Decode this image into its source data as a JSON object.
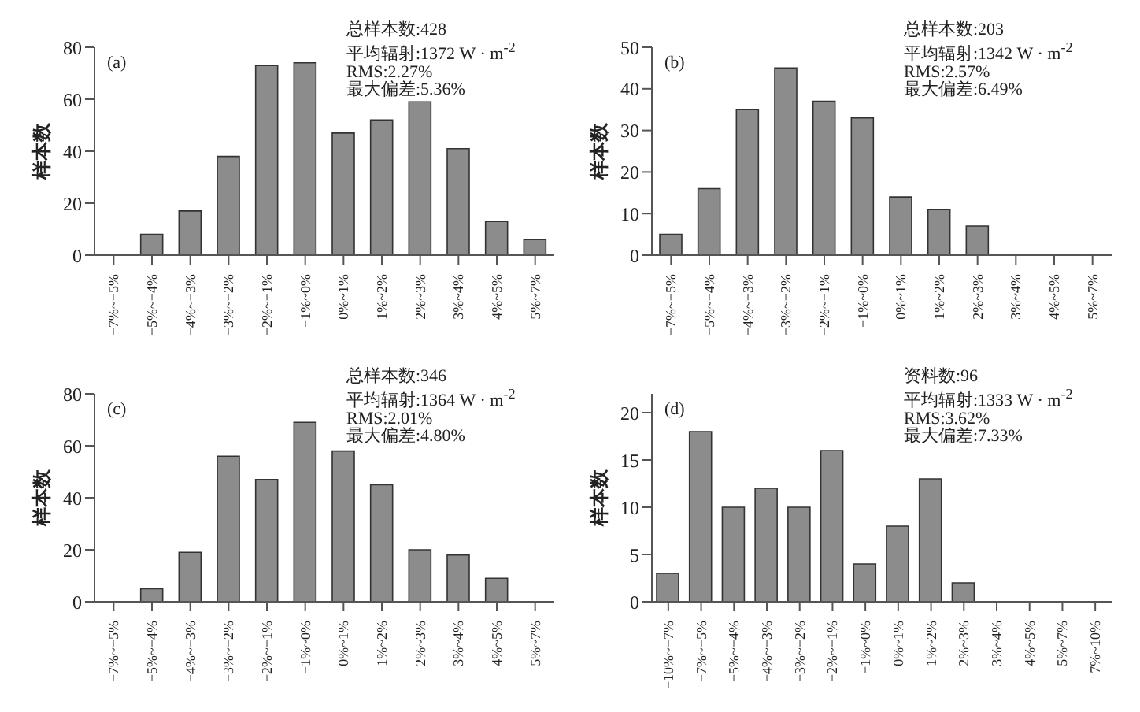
{
  "chart_data": [
    {
      "type": "bar",
      "ylabel": "样本数",
      "categories": [
        "−7%~−5%",
        "−5%~−4%",
        "−4%~−3%",
        "−3%~−2%",
        "−2%~−1%",
        "−1%~0%",
        "0%~1%",
        "1%~2%",
        "2%~3%",
        "3%~4%",
        "4%~5%",
        "5%~7%"
      ],
      "values": [
        0,
        8,
        17,
        38,
        73,
        74,
        47,
        52,
        59,
        41,
        13,
        6
      ],
      "color": "#8c8c8c",
      "ylim": [
        0,
        80
      ],
      "yticks": [
        0,
        20,
        40,
        60,
        80
      ],
      "grid": false,
      "legend": false,
      "annotations": [
        "(a)",
        "总样本数:428",
        "平均辐射:1372 W · m$^{-2}$",
        "RMS:2.27%",
        "最大偏差:5.36%"
      ]
    },
    {
      "type": "bar",
      "ylabel": "样本数",
      "categories": [
        "−7%~−5%",
        "−5%~−4%",
        "−4%~−3%",
        "−3%~−2%",
        "−2%~−1%",
        "−1%~0%",
        "0%~1%",
        "1%~2%",
        "2%~3%",
        "3%~4%",
        "4%~5%",
        "5%~7%"
      ],
      "values": [
        5,
        16,
        35,
        45,
        37,
        33,
        14,
        11,
        7,
        0,
        0,
        0
      ],
      "color": "#8c8c8c",
      "ylim": [
        0,
        50
      ],
      "yticks": [
        0,
        10,
        20,
        30,
        40,
        50
      ],
      "grid": false,
      "legend": false,
      "annotations": [
        "(b)",
        "总样本数:203",
        "平均辐射:1342 W · m$^{-2}$",
        "RMS:2.57%",
        "最大偏差:6.49%"
      ]
    },
    {
      "type": "bar",
      "ylabel": "样本数",
      "categories": [
        "−7%~−5%",
        "−5%~−4%",
        "−4%~−3%",
        "−3%~−2%",
        "−2%~−1%",
        "−1%~0%",
        "0%~1%",
        "1%~2%",
        "2%~3%",
        "3%~4%",
        "4%~5%",
        "5%~7%"
      ],
      "values": [
        0,
        5,
        19,
        56,
        47,
        69,
        58,
        45,
        20,
        18,
        9,
        0
      ],
      "color": "#8c8c8c",
      "ylim": [
        0,
        80
      ],
      "yticks": [
        0,
        20,
        40,
        60,
        80
      ],
      "grid": false,
      "legend": false,
      "annotations": [
        "(c)",
        "总样本数:346",
        "平均辐射:1364 W · m$^{-2}$",
        "RMS:2.01%",
        "最大偏差:4.80%"
      ]
    },
    {
      "type": "bar",
      "ylabel": "样本数",
      "categories": [
        "−10%~−7%",
        "−7%~−5%",
        "−5%~−4%",
        "−4%~−3%",
        "−3%~−2%",
        "−2%~−1%",
        "−1%~0%",
        "0%~1%",
        "1%~2%",
        "2%~3%",
        "3%~4%",
        "4%~5%",
        "5%~7%",
        "7%~10%"
      ],
      "values": [
        3,
        18,
        10,
        12,
        10,
        16,
        4,
        8,
        13,
        2,
        0,
        0,
        0,
        0
      ],
      "color": "#8c8c8c",
      "ylim": [
        0,
        22
      ],
      "yticks": [
        0,
        5,
        10,
        15,
        20
      ],
      "grid": false,
      "legend": false,
      "annotations": [
        "(d)",
        "资料数:96",
        "平均辐射:1333 W · m$^{-2}$",
        "RMS:3.62%",
        "最大偏差:7.33%"
      ]
    }
  ]
}
